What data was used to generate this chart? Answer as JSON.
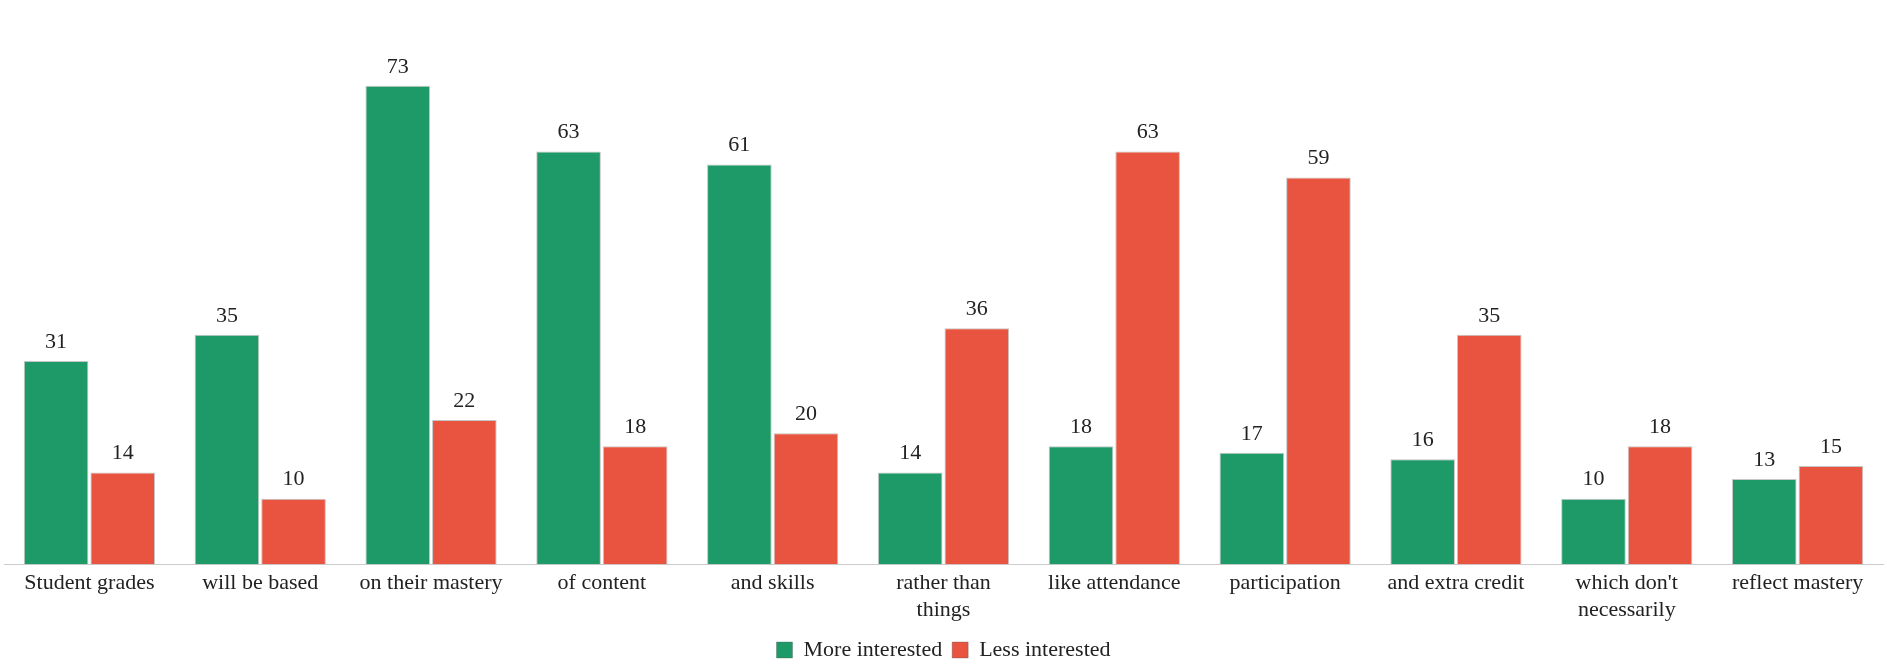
{
  "chart_data": {
    "type": "bar",
    "categories": [
      "Student grades",
      "will be based",
      "on their mastery",
      "of content",
      "and skills",
      "rather than things",
      "like attendance",
      "participation",
      "and extra credit",
      "which don't necessarily",
      "reflect mastery"
    ],
    "series": [
      {
        "name": "More interested",
        "color": "#1e9a68",
        "values": [
          31,
          35,
          73,
          63,
          61,
          14,
          18,
          17,
          16,
          10,
          13
        ]
      },
      {
        "name": "Less interested",
        "color": "#e8543f",
        "values": [
          14,
          10,
          22,
          18,
          20,
          36,
          63,
          59,
          35,
          18,
          15
        ]
      }
    ],
    "data_labels": true,
    "legend": "bottom",
    "grid": false
  }
}
